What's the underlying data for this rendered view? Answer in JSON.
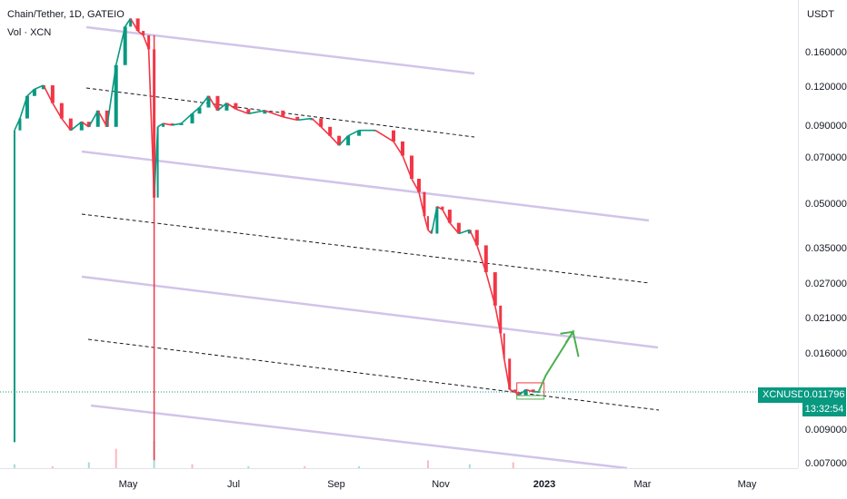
{
  "header": {
    "symbol_title": "Chain/Tether, 1D, GATEIO",
    "volume_label": "Vol · XCN"
  },
  "price_axis": {
    "currency": "USDT",
    "labels": [
      "0.160000",
      "0.120000",
      "0.090000",
      "0.070000",
      "0.050000",
      "0.035000",
      "0.027000",
      "0.021000",
      "0.016000",
      "0.009000",
      "0.007000"
    ]
  },
  "time_axis": {
    "labels": [
      "May",
      "Jul",
      "Sep",
      "Nov",
      "2023",
      "Mar",
      "May"
    ]
  },
  "current": {
    "ticker": "XCNUSDT",
    "price": "0.011796",
    "countdown": "13:32:54"
  },
  "colors": {
    "up": "#089981",
    "down": "#f23645",
    "channel": "#d1c4e9",
    "dashed": "#131722",
    "arrow": "#4caf50",
    "price_line": "#089981"
  },
  "chart_data": {
    "type": "line",
    "title": "Chain/Tether, 1D, GATEIO",
    "xlabel": "",
    "ylabel": "USDT",
    "y_scale": "log",
    "ylim": [
      0.0068,
      0.2
    ],
    "xlim": [
      "2022-03-17",
      "2023-05-31"
    ],
    "series": [
      {
        "name": "XCNUSDT",
        "x": [
          "2022-03-25",
          "2022-03-28",
          "2022-04-01",
          "2022-04-05",
          "2022-04-10",
          "2022-04-15",
          "2022-04-20",
          "2022-04-25",
          "2022-05-01",
          "2022-05-05",
          "2022-05-10",
          "2022-05-15",
          "2022-05-20",
          "2022-05-25",
          "2022-05-28",
          "2022-06-01",
          "2022-06-04",
          "2022-06-07",
          "2022-06-10",
          "2022-06-12",
          "2022-06-15",
          "2022-06-20",
          "2022-06-25",
          "2022-07-01",
          "2022-07-05",
          "2022-07-10",
          "2022-07-15",
          "2022-07-20",
          "2022-07-25",
          "2022-08-01",
          "2022-08-10",
          "2022-08-20",
          "2022-08-28",
          "2022-09-05",
          "2022-09-10",
          "2022-09-15",
          "2022-09-20",
          "2022-09-25",
          "2022-10-01",
          "2022-10-10",
          "2022-10-20",
          "2022-10-25",
          "2022-10-30",
          "2022-11-03",
          "2022-11-06",
          "2022-11-08",
          "2022-11-10",
          "2022-11-13",
          "2022-11-16",
          "2022-11-20",
          "2022-11-25",
          "2022-12-01",
          "2022-12-05",
          "2022-12-10",
          "2022-12-15",
          "2022-12-18",
          "2022-12-20",
          "2022-12-23",
          "2022-12-26",
          "2022-12-28",
          "2023-01-01",
          "2023-01-05",
          "2023-01-08"
        ],
        "values": [
          0.078,
          0.085,
          0.1,
          0.105,
          0.108,
          0.095,
          0.085,
          0.078,
          0.083,
          0.08,
          0.09,
          0.08,
          0.125,
          0.165,
          0.175,
          0.16,
          0.155,
          0.14,
          0.048,
          0.08,
          0.082,
          0.081,
          0.082,
          0.088,
          0.092,
          0.1,
          0.09,
          0.095,
          0.091,
          0.088,
          0.09,
          0.086,
          0.084,
          0.085,
          0.08,
          0.075,
          0.07,
          0.075,
          0.078,
          0.078,
          0.072,
          0.065,
          0.055,
          0.05,
          0.042,
          0.038,
          0.037,
          0.045,
          0.044,
          0.04,
          0.037,
          0.038,
          0.034,
          0.028,
          0.022,
          0.018,
          0.015,
          0.012,
          0.0118,
          0.0115,
          0.012,
          0.0118,
          0.0118
        ]
      }
    ],
    "volume_series": {
      "x": [
        "2022-03-25",
        "2022-04-15",
        "2022-05-05",
        "2022-05-20",
        "2022-06-10",
        "2022-07-01",
        "2022-08-01",
        "2022-09-01",
        "2022-10-01",
        "2022-11-08",
        "2022-12-01",
        "2022-12-25"
      ],
      "values": [
        2,
        1,
        3,
        10,
        14,
        2,
        1,
        1,
        1,
        4,
        2,
        3
      ]
    },
    "current_price": 0.011796,
    "annotations": [
      {
        "type": "projection-arrow",
        "from_date": "2023-01-08",
        "via": [
          [
            "2023-01-12",
            0.0133
          ],
          [
            "2023-01-27",
            0.0182
          ],
          [
            "2023-01-30",
            0.0152
          ]
        ]
      }
    ]
  }
}
